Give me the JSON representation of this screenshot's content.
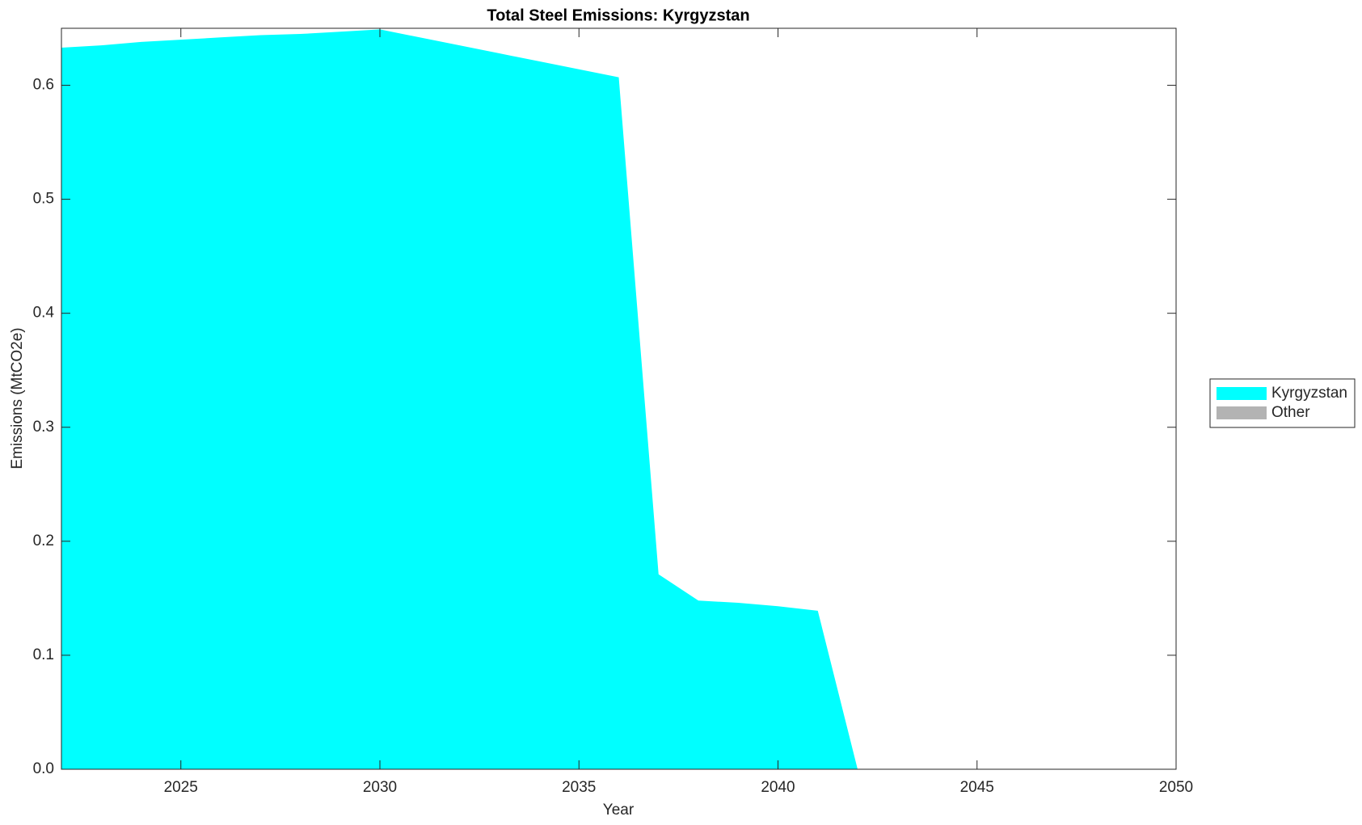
{
  "chart_data": {
    "type": "area",
    "title": "Total Steel Emissions: Kyrgyzstan",
    "x_label": "Year",
    "y_label": "Emissions (MtCO2e)",
    "x": [
      2022,
      2023,
      2024,
      2025,
      2026,
      2027,
      2028,
      2029,
      2030,
      2031,
      2032,
      2033,
      2034,
      2035,
      2036,
      2037,
      2038,
      2039,
      2040,
      2041,
      2042,
      2043,
      2044,
      2045,
      2046,
      2047,
      2048,
      2049,
      2050
    ],
    "series": [
      {
        "name": "Kyrgyzstan",
        "color": "#00ffff",
        "values": [
          0.633,
          0.635,
          0.638,
          0.64,
          0.642,
          0.644,
          0.645,
          0.647,
          0.649,
          0.642,
          0.635,
          0.628,
          0.621,
          0.614,
          0.607,
          0.171,
          0.148,
          0.146,
          0.143,
          0.139,
          0,
          0,
          0,
          0,
          0,
          0,
          0,
          0,
          0
        ]
      },
      {
        "name": "Other",
        "color": "#b3b3b3",
        "values": [
          0,
          0,
          0,
          0,
          0,
          0,
          0,
          0,
          0,
          0,
          0,
          0,
          0,
          0,
          0,
          0,
          0,
          0,
          0,
          0,
          0,
          0,
          0,
          0,
          0,
          0,
          0,
          0,
          0
        ]
      }
    ],
    "stacked": true,
    "xlim": [
      2022,
      2050
    ],
    "xticks": [
      2025,
      2030,
      2035,
      2040,
      2045,
      2050
    ],
    "ylim": [
      0,
      0.65
    ],
    "yticks": [
      {
        "value": 0,
        "label": "0.0"
      },
      0.1,
      0.2,
      0.3,
      0.4,
      0.5,
      0.6
    ],
    "grid": false,
    "legend": "east-outside"
  }
}
